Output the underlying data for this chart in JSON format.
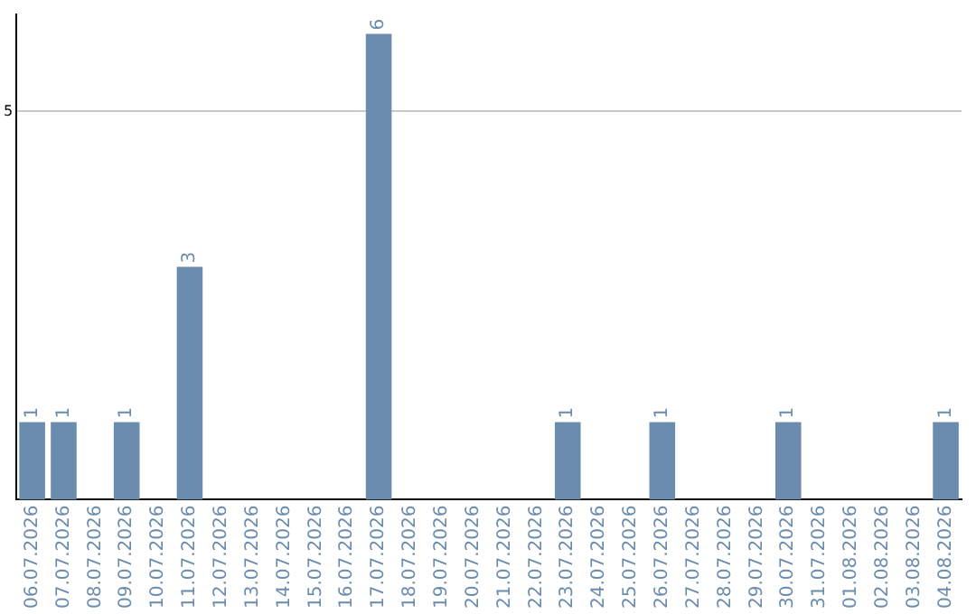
{
  "chart_data": {
    "type": "bar",
    "categories": [
      "06.07.2026",
      "07.07.2026",
      "08.07.2026",
      "09.07.2026",
      "10.07.2026",
      "11.07.2026",
      "12.07.2026",
      "13.07.2026",
      "14.07.2026",
      "15.07.2026",
      "16.07.2026",
      "17.07.2026",
      "18.07.2026",
      "19.07.2026",
      "20.07.2026",
      "21.07.2026",
      "22.07.2026",
      "23.07.2026",
      "24.07.2026",
      "25.07.2026",
      "26.07.2026",
      "27.07.2026",
      "28.07.2026",
      "29.07.2026",
      "30.07.2026",
      "31.07.2026",
      "01.08.2026",
      "02.08.2026",
      "03.08.2026",
      "04.08.2026"
    ],
    "values": [
      1,
      1,
      0,
      1,
      0,
      3,
      0,
      0,
      0,
      0,
      0,
      6,
      0,
      0,
      0,
      0,
      0,
      1,
      0,
      0,
      1,
      0,
      0,
      0,
      1,
      0,
      0,
      0,
      0,
      1
    ],
    "value_labels": [
      "1",
      "1",
      null,
      "1",
      null,
      "3",
      null,
      null,
      null,
      null,
      null,
      "6",
      null,
      null,
      null,
      null,
      null,
      "1",
      null,
      null,
      "1",
      null,
      null,
      null,
      "1",
      null,
      null,
      null,
      null,
      "1"
    ],
    "color": "#6b8cae",
    "ylim": [
      0,
      6.25
    ],
    "yticks": [
      5
    ],
    "grid": "y",
    "legend": false
  }
}
